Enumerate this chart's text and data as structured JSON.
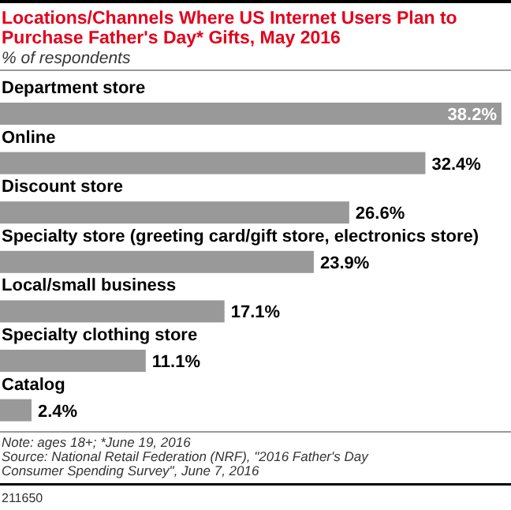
{
  "chart_data": {
    "type": "bar",
    "orientation": "horizontal",
    "title": "Locations/Channels Where US Internet Users Plan to Purchase Father's Day* Gifts, May 2016",
    "subtitle": "% of respondents",
    "categories": [
      "Department store",
      "Online",
      "Discount store",
      "Specialty store (greeting card/gift store, electronics store)",
      "Local/small business",
      "Specialty clothing store",
      "Catalog"
    ],
    "values": [
      38.2,
      32.4,
      26.6,
      23.9,
      17.1,
      11.1,
      2.4
    ],
    "value_labels": [
      "38.2%",
      "32.4%",
      "26.6%",
      "23.9%",
      "17.1%",
      "11.1%",
      "2.4%"
    ],
    "color": "#999999",
    "annotations": [
      "Note: ages 18+; *June 19, 2016",
      "Source: National Retail Federation (NRF), \"2016 Father's Day Consumer Spending Survey\", June 7, 2016",
      "211650"
    ]
  }
}
